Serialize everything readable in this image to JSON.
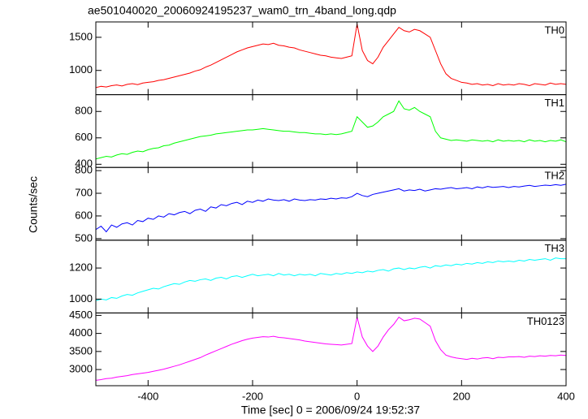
{
  "chart_data": {
    "type": "line",
    "title": "ae501040020_20060924195237_wam0_trn_4band_long.qdp",
    "xlabel": "Time [sec] 0 = 2006/09/24 19:52:37",
    "ylabel": "Counts/sec",
    "xlim": [
      -500,
      400
    ],
    "xticks": [
      -400,
      -200,
      0,
      200,
      400
    ],
    "x": [
      -500,
      -490,
      -480,
      -470,
      -460,
      -450,
      -440,
      -430,
      -420,
      -410,
      -400,
      -390,
      -380,
      -370,
      -360,
      -350,
      -340,
      -330,
      -320,
      -310,
      -300,
      -290,
      -280,
      -270,
      -260,
      -250,
      -240,
      -230,
      -220,
      -210,
      -200,
      -190,
      -180,
      -170,
      -160,
      -150,
      -140,
      -130,
      -120,
      -110,
      -100,
      -90,
      -80,
      -70,
      -60,
      -50,
      -40,
      -30,
      -20,
      -10,
      0,
      10,
      20,
      30,
      40,
      50,
      60,
      70,
      80,
      90,
      100,
      110,
      120,
      130,
      140,
      150,
      160,
      170,
      180,
      190,
      200,
      210,
      220,
      230,
      240,
      250,
      260,
      270,
      280,
      290,
      300,
      310,
      320,
      330,
      340,
      350,
      360,
      370,
      380,
      390,
      400
    ],
    "series": [
      {
        "name": "TH0",
        "color": "#ff0000",
        "ylim": [
          634,
          1732
        ],
        "yticks": [
          1000,
          1500
        ],
        "values": [
          740,
          760,
          750,
          770,
          780,
          765,
          790,
          800,
          785,
          810,
          820,
          830,
          850,
          860,
          880,
          900,
          920,
          940,
          960,
          990,
          1010,
          1050,
          1080,
          1120,
          1160,
          1200,
          1240,
          1280,
          1310,
          1340,
          1360,
          1380,
          1400,
          1390,
          1410,
          1380,
          1370,
          1350,
          1340,
          1310,
          1290,
          1270,
          1250,
          1230,
          1220,
          1200,
          1190,
          1180,
          1200,
          1220,
          1700,
          1300,
          1150,
          1100,
          1200,
          1350,
          1450,
          1550,
          1650,
          1600,
          1580,
          1620,
          1600,
          1550,
          1500,
          1300,
          1100,
          950,
          880,
          850,
          820,
          810,
          790,
          800,
          780,
          790,
          770,
          800,
          780,
          790,
          780,
          800,
          790,
          770,
          800,
          790,
          780,
          810,
          790,
          800,
          790
        ]
      },
      {
        "name": "TH1",
        "color": "#00ff00",
        "ylim": [
          376,
          927
        ],
        "yticks": [
          400,
          600,
          800
        ],
        "values": [
          440,
          450,
          460,
          455,
          470,
          480,
          475,
          490,
          500,
          495,
          510,
          520,
          525,
          540,
          545,
          560,
          570,
          580,
          590,
          600,
          610,
          615,
          620,
          630,
          635,
          640,
          645,
          650,
          655,
          660,
          660,
          665,
          670,
          665,
          660,
          655,
          650,
          650,
          645,
          640,
          640,
          635,
          630,
          630,
          625,
          630,
          625,
          630,
          640,
          650,
          760,
          720,
          680,
          690,
          720,
          760,
          780,
          800,
          880,
          820,
          810,
          830,
          800,
          780,
          760,
          650,
          600,
          590,
          580,
          585,
          580,
          575,
          585,
          580,
          575,
          580,
          570,
          585,
          575,
          580,
          575,
          580,
          570,
          585,
          575,
          580,
          570,
          580,
          575,
          585,
          570
        ]
      },
      {
        "name": "TH2",
        "color": "#0000ff",
        "ylim": [
          493,
          814
        ],
        "yticks": [
          500,
          600,
          700,
          800
        ],
        "values": [
          540,
          555,
          530,
          560,
          550,
          565,
          570,
          560,
          580,
          575,
          590,
          585,
          600,
          595,
          610,
          605,
          615,
          620,
          610,
          625,
          630,
          620,
          640,
          635,
          650,
          645,
          655,
          660,
          650,
          665,
          660,
          670,
          665,
          675,
          670,
          668,
          672,
          665,
          675,
          670,
          668,
          672,
          670,
          675,
          673,
          678,
          675,
          680,
          678,
          685,
          700,
          690,
          685,
          695,
          700,
          705,
          710,
          715,
          720,
          710,
          715,
          712,
          718,
          710,
          715,
          720,
          718,
          722,
          725,
          720,
          722,
          725,
          720,
          728,
          724,
          730,
          726,
          728,
          730,
          725,
          730,
          728,
          732,
          735,
          730,
          733,
          736,
          734,
          738,
          735,
          740
        ]
      },
      {
        "name": "TH3",
        "color": "#00ffff",
        "ylim": [
          911,
          1379
        ],
        "yticks": [
          1000,
          1200
        ],
        "values": [
          990,
          1000,
          995,
          1010,
          1005,
          1020,
          1030,
          1025,
          1040,
          1050,
          1060,
          1070,
          1065,
          1080,
          1090,
          1100,
          1095,
          1110,
          1120,
          1115,
          1125,
          1130,
          1120,
          1135,
          1140,
          1130,
          1145,
          1150,
          1140,
          1150,
          1160,
          1150,
          1155,
          1160,
          1150,
          1165,
          1155,
          1160,
          1150,
          1160,
          1155,
          1160,
          1150,
          1165,
          1160,
          1155,
          1165,
          1160,
          1170,
          1165,
          1175,
          1170,
          1180,
          1175,
          1185,
          1190,
          1180,
          1195,
          1200,
          1190,
          1200,
          1195,
          1205,
          1210,
          1200,
          1215,
          1210,
          1220,
          1215,
          1225,
          1220,
          1230,
          1225,
          1235,
          1230,
          1240,
          1235,
          1245,
          1240,
          1245,
          1240,
          1250,
          1245,
          1255,
          1250,
          1255,
          1260,
          1250,
          1265,
          1260,
          1260
        ]
      },
      {
        "name": "TH0123",
        "color": "#ff00ff",
        "ylim": [
          2552,
          4567
        ],
        "yticks": [
          3000,
          3500,
          4000,
          4500
        ],
        "values": [
          2700,
          2720,
          2750,
          2760,
          2790,
          2810,
          2830,
          2860,
          2880,
          2900,
          2920,
          2950,
          2980,
          3010,
          3050,
          3090,
          3130,
          3180,
          3230,
          3280,
          3330,
          3400,
          3460,
          3520,
          3580,
          3640,
          3700,
          3750,
          3800,
          3840,
          3870,
          3890,
          3910,
          3900,
          3920,
          3890,
          3880,
          3860,
          3840,
          3820,
          3790,
          3770,
          3750,
          3730,
          3710,
          3700,
          3690,
          3680,
          3700,
          3720,
          4450,
          3900,
          3650,
          3500,
          3650,
          3900,
          4100,
          4250,
          4450,
          4350,
          4380,
          4420,
          4400,
          4300,
          4200,
          3800,
          3550,
          3400,
          3350,
          3320,
          3300,
          3280,
          3310,
          3290,
          3320,
          3330,
          3300,
          3340,
          3330,
          3350,
          3350,
          3360,
          3340,
          3370,
          3360,
          3380,
          3370,
          3390,
          3380,
          3400,
          3390
        ]
      }
    ]
  }
}
